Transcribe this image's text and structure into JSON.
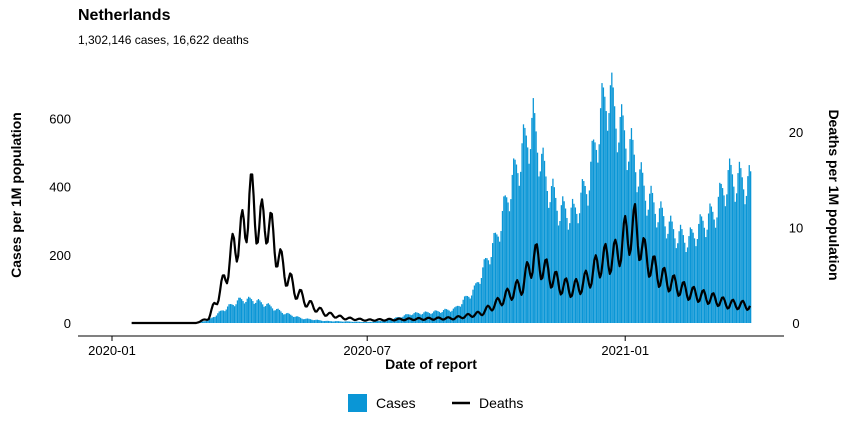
{
  "chart_data": {
    "type": "bar+line",
    "title": "Netherlands",
    "subtitle": "1,302,146 cases, 16,622 deaths",
    "xlabel": "Date of report",
    "ylabel_left": "Cases per 1M population",
    "ylabel_right": "Deaths per 1M population",
    "x_ticks": [
      "2020-01",
      "2020-07",
      "2021-01"
    ],
    "x_range": [
      "2020-01-01",
      "2021-03-31"
    ],
    "y_left_ticks": [
      "0",
      "200",
      "400",
      "600"
    ],
    "y_left_range": [
      0,
      760
    ],
    "y_right_ticks": [
      "0",
      "10",
      "20"
    ],
    "y_right_range": [
      0,
      27.1
    ],
    "legend": {
      "position": "bottom",
      "entries": [
        "Cases",
        "Deaths"
      ]
    },
    "colors": {
      "cases": "#0a96d6",
      "deaths": "#000000"
    },
    "series": [
      {
        "name": "Cases",
        "kind": "bar",
        "axis": "left",
        "points": [
          [
            "2020-03-01",
            0
          ],
          [
            "2020-03-10",
            10
          ],
          [
            "2020-03-20",
            40
          ],
          [
            "2020-04-01",
            70
          ],
          [
            "2020-04-10",
            70
          ],
          [
            "2020-04-20",
            55
          ],
          [
            "2020-05-01",
            32
          ],
          [
            "2020-05-15",
            14
          ],
          [
            "2020-06-01",
            6
          ],
          [
            "2020-07-01",
            3
          ],
          [
            "2020-07-15",
            8
          ],
          [
            "2020-08-01",
            28
          ],
          [
            "2020-08-15",
            32
          ],
          [
            "2020-09-01",
            42
          ],
          [
            "2020-09-15",
            100
          ],
          [
            "2020-10-01",
            260
          ],
          [
            "2020-10-10",
            400
          ],
          [
            "2020-10-20",
            530
          ],
          [
            "2020-10-27",
            600
          ],
          [
            "2020-11-05",
            430
          ],
          [
            "2020-11-15",
            340
          ],
          [
            "2020-11-25",
            330
          ],
          [
            "2020-12-05",
            420
          ],
          [
            "2020-12-15",
            640
          ],
          [
            "2020-12-20",
            700
          ],
          [
            "2020-12-25",
            620
          ],
          [
            "2021-01-05",
            520
          ],
          [
            "2021-01-15",
            390
          ],
          [
            "2021-01-25",
            330
          ],
          [
            "2021-02-05",
            270
          ],
          [
            "2021-02-15",
            250
          ],
          [
            "2021-02-25",
            300
          ],
          [
            "2021-03-05",
            330
          ],
          [
            "2021-03-15",
            440
          ],
          [
            "2021-03-31",
            420
          ]
        ]
      },
      {
        "name": "Deaths",
        "kind": "line",
        "axis": "right",
        "points": [
          [
            "2020-03-01",
            0
          ],
          [
            "2020-03-10",
            0.5
          ],
          [
            "2020-03-20",
            4
          ],
          [
            "2020-03-28",
            8
          ],
          [
            "2020-04-05",
            10
          ],
          [
            "2020-04-08",
            13.5
          ],
          [
            "2020-04-15",
            10
          ],
          [
            "2020-04-20",
            11
          ],
          [
            "2020-05-01",
            6
          ],
          [
            "2020-05-10",
            3.5
          ],
          [
            "2020-05-20",
            2
          ],
          [
            "2020-06-01",
            1
          ],
          [
            "2020-06-15",
            0.5
          ],
          [
            "2020-07-01",
            0.3
          ],
          [
            "2020-08-01",
            0.4
          ],
          [
            "2020-09-01",
            0.5
          ],
          [
            "2020-09-20",
            1
          ],
          [
            "2020-10-01",
            2
          ],
          [
            "2020-10-10",
            3
          ],
          [
            "2020-10-20",
            4
          ],
          [
            "2020-10-28",
            7
          ],
          [
            "2020-11-05",
            5.5
          ],
          [
            "2020-11-15",
            4
          ],
          [
            "2020-11-25",
            3.5
          ],
          [
            "2020-12-05",
            4.5
          ],
          [
            "2020-12-15",
            6.5
          ],
          [
            "2020-12-25",
            7
          ],
          [
            "2021-01-01",
            9
          ],
          [
            "2021-01-08",
            10
          ],
          [
            "2021-01-15",
            7
          ],
          [
            "2021-01-25",
            5
          ],
          [
            "2021-02-05",
            4
          ],
          [
            "2021-02-15",
            3.2
          ],
          [
            "2021-02-25",
            2.8
          ],
          [
            "2021-03-05",
            2.5
          ],
          [
            "2021-03-15",
            2
          ],
          [
            "2021-03-31",
            1.8
          ]
        ]
      }
    ]
  }
}
